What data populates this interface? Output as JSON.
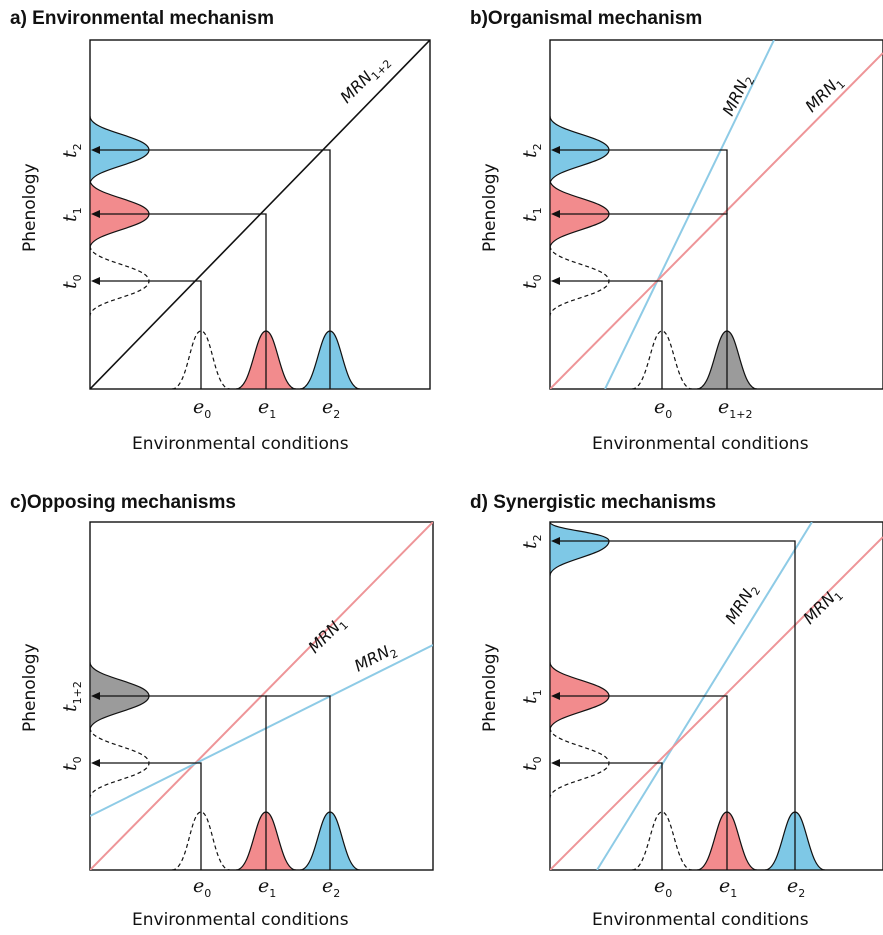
{
  "panels": [
    {
      "id": "a",
      "title": "a) Environmental mechanism",
      "xlabel": "Environmental conditions",
      "ylabel": "Phenology",
      "lines": [
        {
          "label": "MRN",
          "sub": "1+2",
          "color": "#111111"
        }
      ],
      "x_ticks": [
        {
          "base": "e",
          "sub": "0"
        },
        {
          "base": "e",
          "sub": "1"
        },
        {
          "base": "e",
          "sub": "2"
        }
      ],
      "y_ticks": [
        {
          "base": "t",
          "sub": "0"
        },
        {
          "base": "t",
          "sub": "1"
        },
        {
          "base": "t",
          "sub": "2"
        }
      ],
      "fills": {
        "x": [
          "none",
          "#f28b8d",
          "#7ec8e6"
        ],
        "y": [
          "none",
          "#f28b8d",
          "#7ec8e6"
        ]
      }
    },
    {
      "id": "b",
      "title": "b)Organismal mechanism",
      "xlabel": "Environmental conditions",
      "ylabel": "Phenology",
      "lines": [
        {
          "label": "MRN",
          "sub": "2",
          "color": "#8ecbe6"
        },
        {
          "label": "MRN",
          "sub": "1",
          "color": "#ee9598"
        }
      ],
      "x_ticks": [
        {
          "base": "e",
          "sub": "0"
        },
        {
          "base": "e",
          "sub": "1+2"
        }
      ],
      "y_ticks": [
        {
          "base": "t",
          "sub": "0"
        },
        {
          "base": "t",
          "sub": "1"
        },
        {
          "base": "t",
          "sub": "2"
        }
      ],
      "fills": {
        "x": [
          "none",
          "#9b9b9b"
        ],
        "y": [
          "none",
          "#f28b8d",
          "#7ec8e6"
        ]
      }
    },
    {
      "id": "c",
      "title": "c)Opposing mechanisms",
      "xlabel": "Environmental conditions",
      "ylabel": "Phenology",
      "lines": [
        {
          "label": "MRN",
          "sub": "1",
          "color": "#ee9598"
        },
        {
          "label": "MRN",
          "sub": "2",
          "color": "#8ecbe6"
        }
      ],
      "x_ticks": [
        {
          "base": "e",
          "sub": "0"
        },
        {
          "base": "e",
          "sub": "1"
        },
        {
          "base": "e",
          "sub": "2"
        }
      ],
      "y_ticks": [
        {
          "base": "t",
          "sub": "0"
        },
        {
          "base": "t",
          "sub": "1+2"
        }
      ],
      "fills": {
        "x": [
          "none",
          "#f28b8d",
          "#7ec8e6"
        ],
        "y": [
          "none",
          "#9b9b9b"
        ]
      }
    },
    {
      "id": "d",
      "title": "d) Synergistic mechanisms",
      "xlabel": "Environmental conditions",
      "ylabel": "Phenology",
      "lines": [
        {
          "label": "MRN",
          "sub": "2",
          "color": "#8ecbe6"
        },
        {
          "label": "MRN",
          "sub": "1",
          "color": "#ee9598"
        }
      ],
      "x_ticks": [
        {
          "base": "e",
          "sub": "0"
        },
        {
          "base": "e",
          "sub": "1"
        },
        {
          "base": "e",
          "sub": "2"
        }
      ],
      "y_ticks": [
        {
          "base": "t",
          "sub": "0"
        },
        {
          "base": "t",
          "sub": "1"
        },
        {
          "base": "t",
          "sub": "2"
        }
      ],
      "fills": {
        "x": [
          "none",
          "#f28b8d",
          "#7ec8e6"
        ],
        "y": [
          "none",
          "#f28b8d",
          "#7ec8e6"
        ]
      }
    }
  ]
}
